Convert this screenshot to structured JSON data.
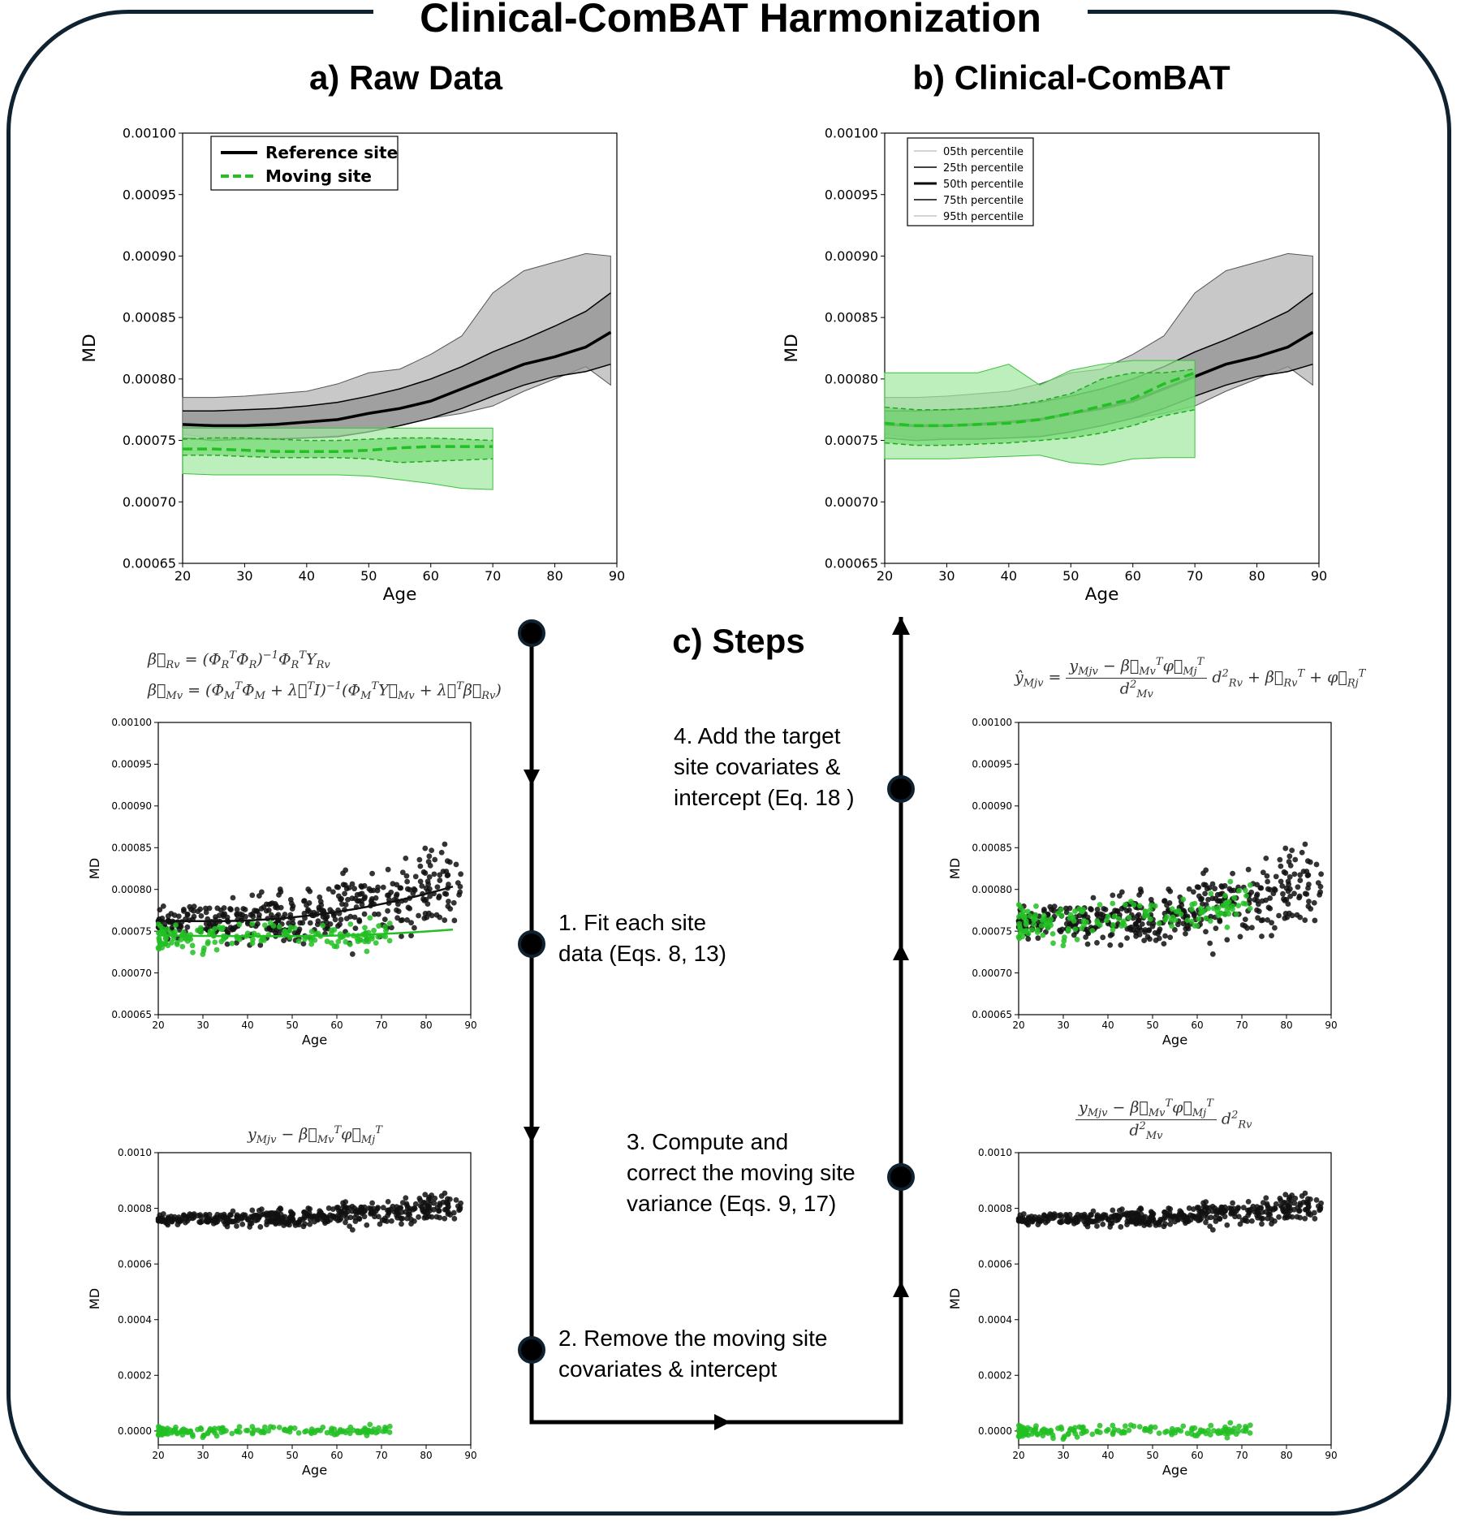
{
  "title": "Clinical-ComBAT Harmonization",
  "panel_a_title": "a) Raw Data",
  "panel_b_title": "b) Clinical-ComBAT",
  "panel_c_title": "c) Steps",
  "legend_a": [
    "Reference site",
    "Moving site"
  ],
  "legend_b": [
    "05th percentile",
    "25th percentile",
    "50th percentile",
    "75th percentile",
    "95th percentile"
  ],
  "steps": {
    "s1": "1. Fit each site\ndata (Eqs. 8, 13)",
    "s2": "2. Remove the moving site\ncovariates & intercept",
    "s3": "3. Compute and\ncorrect the moving site\nvariance (Eqs. 9, 17)",
    "s4": "4. Add the target\nsite covariates &\nintercept (Eq. 18 )"
  },
  "colors": {
    "frame": "#0f2231",
    "reference": "#000000",
    "moving": "#22c022",
    "moving_fill": "#9fe89f",
    "ref_fill": "#c8c8c8"
  },
  "chart_data": [
    {
      "id": "raw-percentiles",
      "type": "area",
      "title": "a) Raw Data",
      "xlabel": "Age",
      "ylabel": "MD",
      "xlim": [
        20,
        90
      ],
      "ylim": [
        0.00065,
        0.001
      ],
      "xticks": [
        20,
        30,
        40,
        50,
        60,
        70,
        80,
        90
      ],
      "yticks": [
        "0.00065",
        "0.00070",
        "0.00075",
        "0.00080",
        "0.00085",
        "0.00090",
        "0.00095",
        "0.00100"
      ],
      "legend_position": "top-left",
      "reference": {
        "age": [
          20,
          25,
          30,
          35,
          40,
          45,
          50,
          55,
          60,
          65,
          70,
          75,
          80,
          85,
          89
        ],
        "p05": [
          0.000755,
          0.000752,
          0.000752,
          0.000752,
          0.000752,
          0.000754,
          0.000757,
          0.000762,
          0.000768,
          0.000772,
          0.000778,
          0.00079,
          0.0008,
          0.00081,
          0.000795
        ],
        "p25": [
          0.000752,
          0.00075,
          0.000751,
          0.000751,
          0.000752,
          0.000753,
          0.000757,
          0.000762,
          0.000768,
          0.000776,
          0.000786,
          0.000795,
          0.000802,
          0.000806,
          0.000812
        ],
        "p50": [
          0.000763,
          0.000762,
          0.000762,
          0.000763,
          0.000765,
          0.000767,
          0.000772,
          0.000776,
          0.000782,
          0.000792,
          0.000802,
          0.000812,
          0.000818,
          0.000826,
          0.000838
        ],
        "p75": [
          0.000774,
          0.000774,
          0.000775,
          0.000776,
          0.000778,
          0.000781,
          0.000786,
          0.000792,
          0.0008,
          0.00081,
          0.000822,
          0.000832,
          0.000843,
          0.000855,
          0.00087
        ],
        "p95": [
          0.000785,
          0.000785,
          0.000786,
          0.000788,
          0.00079,
          0.000796,
          0.000805,
          0.000808,
          0.00082,
          0.000835,
          0.00087,
          0.000888,
          0.000895,
          0.000902,
          0.0009
        ]
      },
      "moving": {
        "age": [
          20,
          25,
          30,
          35,
          40,
          45,
          50,
          55,
          60,
          65,
          70
        ],
        "p05": [
          0.000723,
          0.000722,
          0.000722,
          0.000722,
          0.000722,
          0.000722,
          0.000721,
          0.000718,
          0.000715,
          0.000711,
          0.00071
        ],
        "p25": [
          0.000738,
          0.000738,
          0.000737,
          0.000736,
          0.000736,
          0.000736,
          0.000735,
          0.000732,
          0.000733,
          0.000734,
          0.000735
        ],
        "p50": [
          0.000743,
          0.000743,
          0.000742,
          0.000741,
          0.000741,
          0.000741,
          0.000742,
          0.000744,
          0.000745,
          0.000745,
          0.000745
        ],
        "p75": [
          0.000751,
          0.000752,
          0.000752,
          0.000751,
          0.00075,
          0.00075,
          0.000751,
          0.000752,
          0.000752,
          0.000751,
          0.00075
        ],
        "p95": [
          0.00076,
          0.00076,
          0.00076,
          0.00076,
          0.00076,
          0.00076,
          0.00076,
          0.00076,
          0.00076,
          0.00076,
          0.00076
        ]
      }
    },
    {
      "id": "harmonized-percentiles",
      "type": "area",
      "title": "b) Clinical-ComBAT",
      "xlabel": "Age",
      "ylabel": "MD",
      "xlim": [
        20,
        90
      ],
      "ylim": [
        0.00065,
        0.001
      ],
      "xticks": [
        20,
        30,
        40,
        50,
        60,
        70,
        80,
        90
      ],
      "yticks": [
        "0.00065",
        "0.00070",
        "0.00075",
        "0.00080",
        "0.00085",
        "0.00090",
        "0.00095",
        "0.00100"
      ],
      "legend_position": "top-left",
      "moving": {
        "age": [
          20,
          25,
          30,
          35,
          40,
          45,
          50,
          55,
          60,
          65,
          70
        ],
        "p05": [
          0.000735,
          0.000735,
          0.000735,
          0.000736,
          0.000737,
          0.000738,
          0.000732,
          0.00073,
          0.000735,
          0.000736,
          0.000736
        ],
        "p25": [
          0.000748,
          0.000746,
          0.000746,
          0.000747,
          0.000748,
          0.00075,
          0.000752,
          0.000756,
          0.000762,
          0.00077,
          0.000775
        ],
        "p50": [
          0.000764,
          0.000762,
          0.000762,
          0.000763,
          0.000764,
          0.000767,
          0.000772,
          0.000778,
          0.000784,
          0.000796,
          0.000805
        ],
        "p75": [
          0.000777,
          0.000775,
          0.000775,
          0.000776,
          0.000778,
          0.000782,
          0.000788,
          0.0008,
          0.000805,
          0.000805,
          0.000808
        ],
        "p95": [
          0.000805,
          0.000805,
          0.000805,
          0.000805,
          0.000812,
          0.000795,
          0.000807,
          0.000812,
          0.000815,
          0.000815,
          0.000815
        ]
      }
    },
    {
      "id": "fit-scatter",
      "type": "scatter",
      "xlabel": "Age",
      "ylabel": "MD",
      "xlim": [
        20,
        90
      ],
      "ylim": [
        0.00065,
        0.001
      ],
      "xticks": [
        20,
        30,
        40,
        50,
        60,
        70,
        80,
        90
      ],
      "yticks": [
        "0.00065",
        "0.00070",
        "0.00075",
        "0.00080",
        "0.00085",
        "0.00090",
        "0.00095",
        "0.00100"
      ],
      "formula": "β_Rv = (Φ_R^T Φ_R)^-1 Φ_R^T Y_Rv ; β_Mv = (Φ_M^T Φ_M + λ^T I)^-1 (Φ_M^T Y_Mv + λ^T β_Rv)",
      "fit_reference": {
        "a": 0.000762,
        "b": 1.42e-08,
        "c": 32
      },
      "fit_moving": {
        "a": 0.000744,
        "b": 5.5e-09,
        "c": 48
      }
    },
    {
      "id": "removed-scatter",
      "type": "scatter",
      "xlabel": "Age",
      "ylabel": "MD",
      "xlim": [
        20,
        90
      ],
      "ylim": [
        -5e-05,
        0.001
      ],
      "xticks": [
        20,
        30,
        40,
        50,
        60,
        70,
        80,
        90
      ],
      "yticks": [
        "0.0000",
        "0.0002",
        "0.0004",
        "0.0006",
        "0.0008",
        "0.0010"
      ]
    },
    {
      "id": "target-scatter",
      "type": "scatter",
      "xlabel": "Age",
      "ylabel": "MD",
      "xlim": [
        20,
        90
      ],
      "ylim": [
        0.00065,
        0.001
      ],
      "xticks": [
        20,
        30,
        40,
        50,
        60,
        70,
        80,
        90
      ],
      "yticks": [
        "0.00065",
        "0.00070",
        "0.00075",
        "0.00080",
        "0.00085",
        "0.00090",
        "0.00095",
        "0.00100"
      ]
    },
    {
      "id": "variance-scatter",
      "type": "scatter",
      "xlabel": "Age",
      "ylabel": "MD",
      "xlim": [
        20,
        90
      ],
      "ylim": [
        -5e-05,
        0.001
      ],
      "xticks": [
        20,
        30,
        40,
        50,
        60,
        70,
        80,
        90
      ],
      "yticks": [
        "0.0000",
        "0.0002",
        "0.0004",
        "0.0006",
        "0.0008",
        "0.0010"
      ]
    }
  ]
}
